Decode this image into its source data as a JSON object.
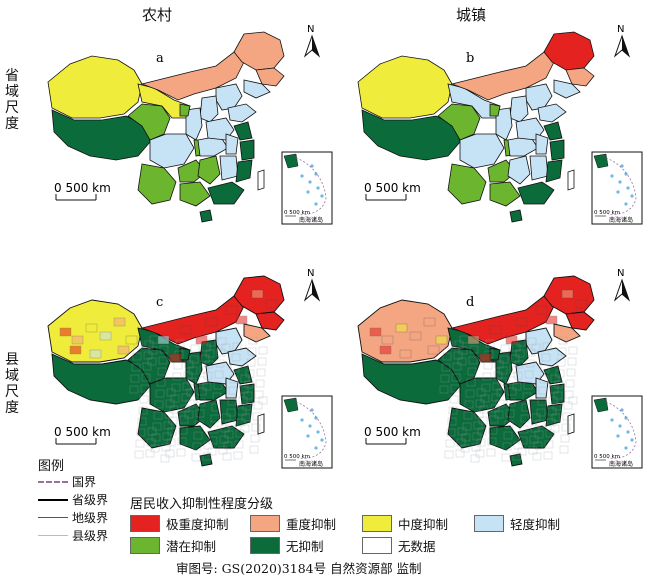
{
  "columns": {
    "left": "农村",
    "right": "城镇"
  },
  "rows": {
    "top": "省域尺度",
    "bottom": "县域尺度"
  },
  "panels": [
    {
      "letter": "a",
      "scale_label": "0   500 km",
      "north": "N",
      "inset_caption": "南海诸岛",
      "inset_scale": "0  500 km"
    },
    {
      "letter": "b",
      "scale_label": "0   500 km",
      "north": "N",
      "inset_caption": "南海诸岛",
      "inset_scale": "0  500 km"
    },
    {
      "letter": "c",
      "scale_label": "0   500 km",
      "north": "N",
      "inset_caption": "南海诸岛",
      "inset_scale": "0  500 km"
    },
    {
      "letter": "d",
      "scale_label": "0   500 km",
      "north": "N",
      "inset_caption": "南海诸岛",
      "inset_scale": "0  500 km"
    }
  ],
  "legend": {
    "title": "图例",
    "boundaries": [
      {
        "label": "国界",
        "color": "#9b6ea0"
      },
      {
        "label": "省级界",
        "color": "#000000"
      },
      {
        "label": "地级界",
        "color": "#555555"
      },
      {
        "label": "县级界",
        "color": "#bbbbbb"
      }
    ],
    "classes_title": "居民收入抑制性程度分级",
    "classes": [
      {
        "label": "极重度抑制",
        "color": "#e42320"
      },
      {
        "label": "重度抑制",
        "color": "#f4a582"
      },
      {
        "label": "中度抑制",
        "color": "#f0ec3c"
      },
      {
        "label": "轻度抑制",
        "color": "#c6e2f5"
      },
      {
        "label": "潜在抑制",
        "color": "#6cb52f"
      },
      {
        "label": "无抑制",
        "color": "#0b6b3a"
      },
      {
        "label": "无数据",
        "color": "#ffffff"
      }
    ]
  },
  "footer": "审图号: GS(2020)3184号 自然资源部  监制"
}
